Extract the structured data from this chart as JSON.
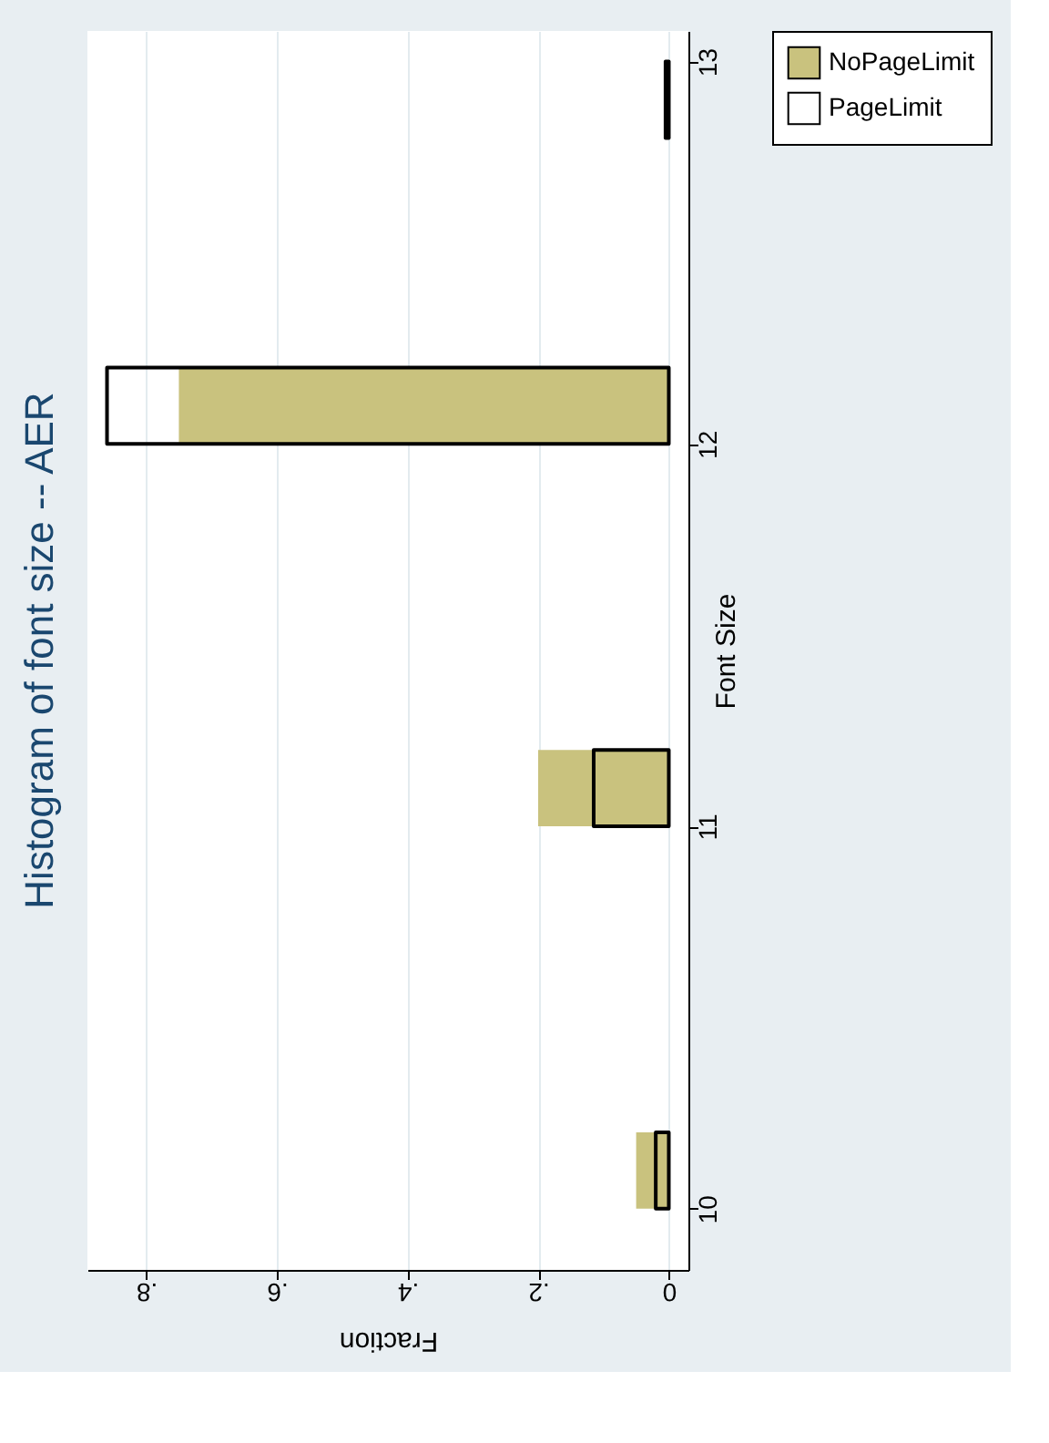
{
  "chart_data": {
    "type": "histogram",
    "title": "Histogram of font size -- AER",
    "xlabel": "Fraction",
    "ylabel": "Font Size",
    "orientation": "horizontal",
    "bins": [
      10,
      10.2,
      10.4,
      10.6,
      10.8,
      11,
      11.2,
      11.4,
      11.6,
      11.8,
      12,
      12.2,
      12.4,
      12.6,
      12.8,
      13
    ],
    "series": [
      {
        "name": "NoPageLimit",
        "color": "#c9c27e",
        "values": [
          0.05,
          0,
          0,
          0,
          0,
          0.2,
          0,
          0,
          0,
          0,
          0.75,
          0,
          0,
          0,
          0
        ]
      },
      {
        "name": "PageLimit",
        "color": "#000000",
        "values": [
          0.02,
          0,
          0,
          0,
          0,
          0.115,
          0,
          0,
          0,
          0,
          0.86,
          0,
          0,
          0,
          0.005
        ]
      }
    ],
    "xlim": [
      0.89,
      -0.03
    ],
    "xticks": [
      {
        "value": 0.8,
        "label": ".8"
      },
      {
        "value": 0.6,
        "label": ".6"
      },
      {
        "value": 0.4,
        "label": ".4"
      },
      {
        "value": 0.2,
        "label": ".2"
      },
      0
    ],
    "ylim": [
      9.84,
      13.08
    ],
    "yticks": [
      10,
      11,
      12,
      13
    ],
    "grid": "x",
    "legend": "right"
  }
}
